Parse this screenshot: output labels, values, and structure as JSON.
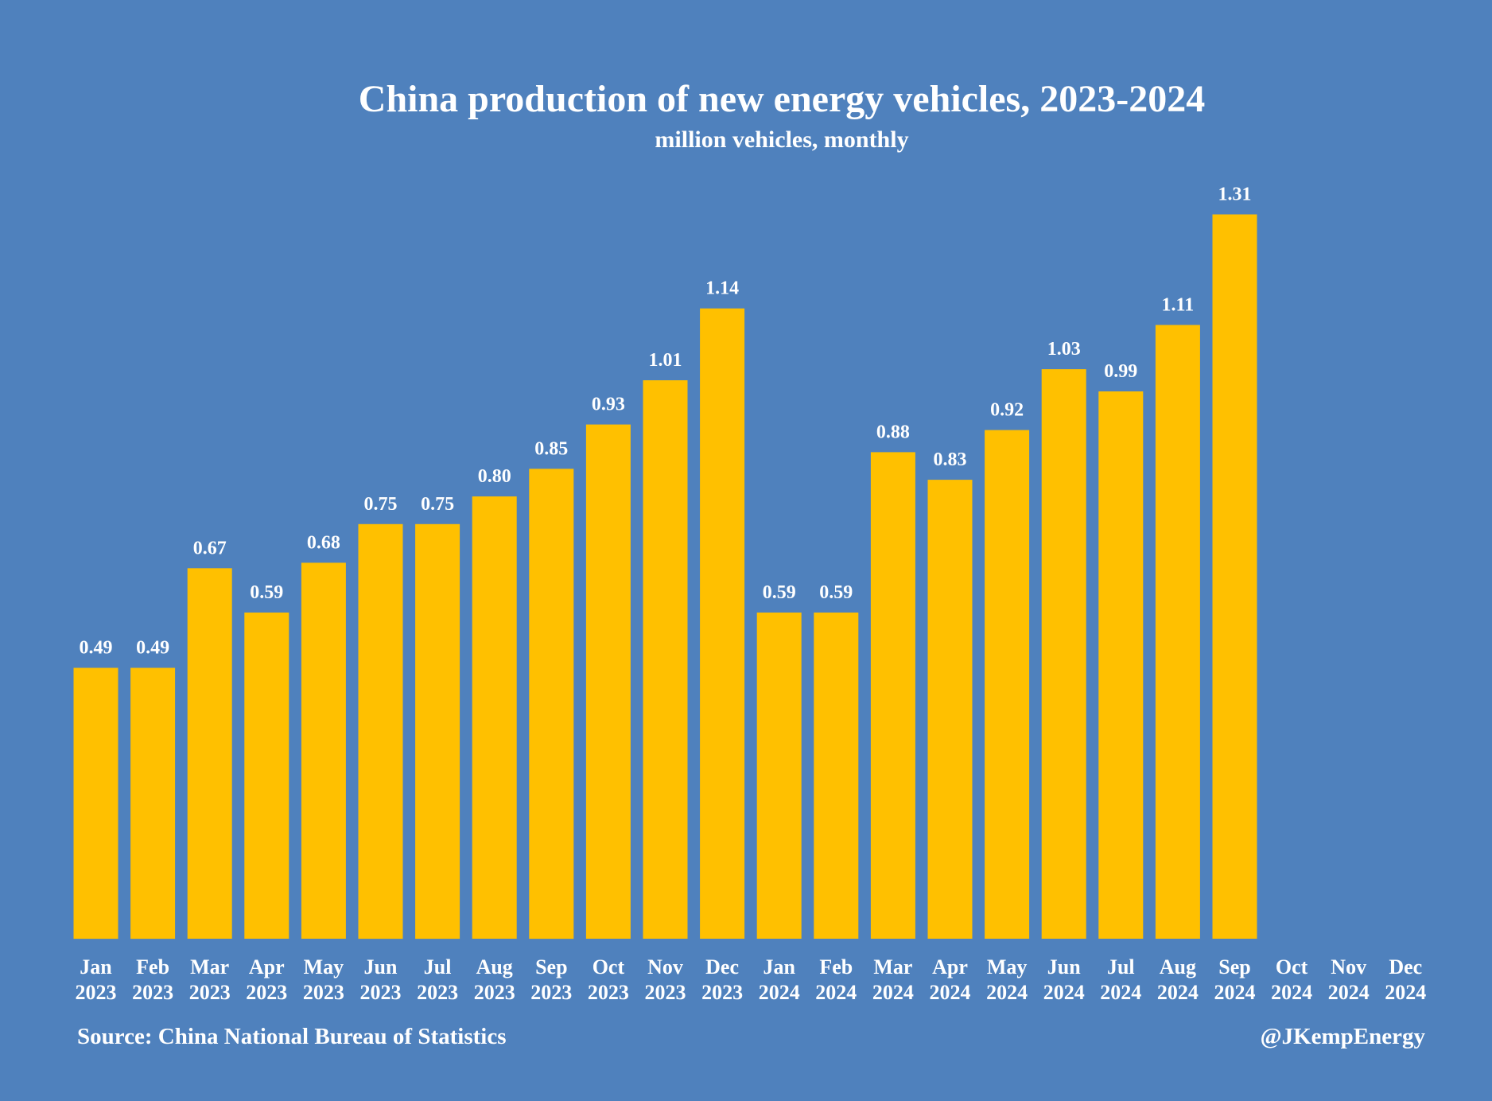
{
  "chart_data": {
    "type": "bar",
    "title": "China production of  new energy vehicles, 2023-2024",
    "subtitle": "million vehicles, monthly",
    "xlabel": "",
    "ylabel": "",
    "ylim": [
      0,
      1.4
    ],
    "grid": false,
    "legend": "none",
    "categories": [
      [
        "Jan",
        "2023"
      ],
      [
        "Feb",
        "2023"
      ],
      [
        "Mar",
        "2023"
      ],
      [
        "Apr",
        "2023"
      ],
      [
        "May",
        "2023"
      ],
      [
        "Jun",
        "2023"
      ],
      [
        "Jul",
        "2023"
      ],
      [
        "Aug",
        "2023"
      ],
      [
        "Sep",
        "2023"
      ],
      [
        "Oct",
        "2023"
      ],
      [
        "Nov",
        "2023"
      ],
      [
        "Dec",
        "2023"
      ],
      [
        "Jan",
        "2024"
      ],
      [
        "Feb",
        "2024"
      ],
      [
        "Mar",
        "2024"
      ],
      [
        "Apr",
        "2024"
      ],
      [
        "May",
        "2024"
      ],
      [
        "Jun",
        "2024"
      ],
      [
        "Jul",
        "2024"
      ],
      [
        "Aug",
        "2024"
      ],
      [
        "Sep",
        "2024"
      ],
      [
        "Oct",
        "2024"
      ],
      [
        "Nov",
        "2024"
      ],
      [
        "Dec",
        "2024"
      ]
    ],
    "values": [
      0.49,
      0.49,
      0.67,
      0.59,
      0.68,
      0.75,
      0.75,
      0.8,
      0.85,
      0.93,
      1.01,
      1.14,
      0.59,
      0.59,
      0.88,
      0.83,
      0.92,
      1.03,
      0.99,
      1.11,
      1.31,
      null,
      null,
      null
    ],
    "data_labels": [
      "0.49",
      "0.49",
      "0.67",
      "0.59",
      "0.68",
      "0.75",
      "0.75",
      "0.80",
      "0.85",
      "0.93",
      "1.01",
      "1.14",
      "0.59",
      "0.59",
      "0.88",
      "0.83",
      "0.92",
      "1.03",
      "0.99",
      "1.11",
      "1.31",
      "",
      "",
      ""
    ]
  },
  "colors": {
    "background": "#4f81bd",
    "bar": "#ffc000",
    "text": "#ffffff"
  },
  "footer": {
    "source": "Source: China National Bureau of Statistics",
    "credit": "@JKempEnergy"
  }
}
